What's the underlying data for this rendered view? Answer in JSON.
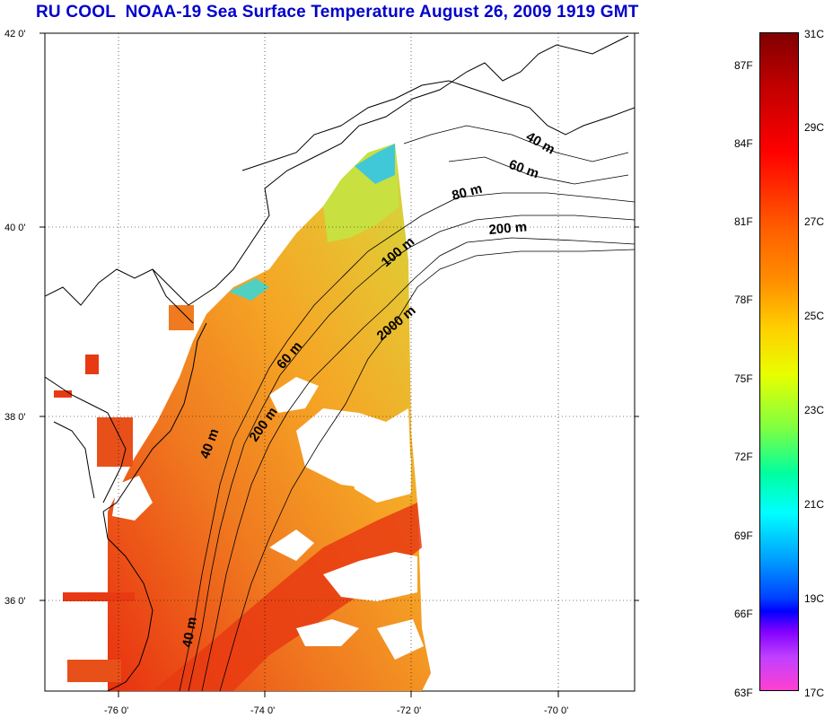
{
  "title": "RU COOL  NOAA-19 Sea Surface Temperature August 26, 2009 1919 GMT",
  "lat_labels": [
    "42 0'",
    "40 0'",
    "38 0'",
    "36 0'"
  ],
  "lon_labels": [
    "-76 0'",
    "-74 0'",
    "-72 0'",
    "-70 0'"
  ],
  "contour_labels": [
    "40 m",
    "60 m",
    "80 m",
    "200 m",
    "100 m",
    "2000 m",
    "60 m",
    "200 m",
    "40 m",
    "40 m"
  ],
  "colorbar": {
    "fahrenheit": [
      "87F",
      "84F",
      "81F",
      "78F",
      "75F",
      "72F",
      "69F",
      "66F",
      "63F"
    ],
    "celsius": [
      "31C",
      "29C",
      "27C",
      "25C",
      "23C",
      "21C",
      "19C",
      "17C"
    ]
  },
  "colors": {
    "title": "#0000cc",
    "warm_water": "#f07020",
    "hot_water": "#e82010",
    "mid_water": "#f5a020",
    "cool_water": "#c8e030",
    "cold_water": "#30d0e0"
  }
}
